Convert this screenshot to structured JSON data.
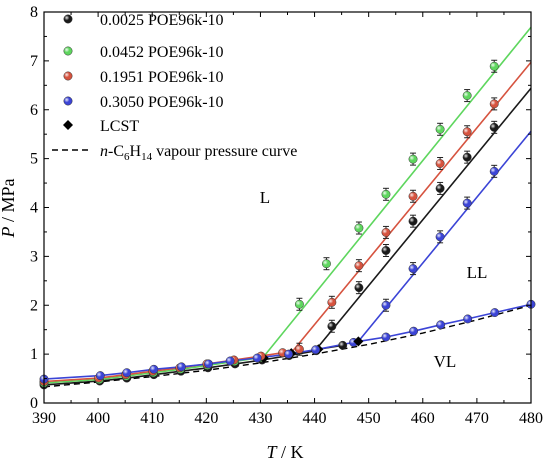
{
  "chart_data": {
    "type": "scatter",
    "xlabel": {
      "var": "T",
      "unit": " / K"
    },
    "ylabel": {
      "var": "P",
      "unit": " / MPa"
    },
    "xlim": [
      390,
      480
    ],
    "ylim": [
      0,
      8
    ],
    "xticks": [
      "390",
      "400",
      "410",
      "420",
      "430",
      "440",
      "450",
      "460",
      "470",
      "480"
    ],
    "yticks": [
      "0",
      "1",
      "2",
      "3",
      "4",
      "5",
      "6",
      "7",
      "8"
    ],
    "grid": false,
    "legend_position": "top-left",
    "region_labels": {
      "L": "L",
      "LL": "LL",
      "VL": "VL"
    },
    "series": [
      {
        "name": "0.0025 POE96k-10",
        "color": "#1a1a1a",
        "vl_points": [
          [
            390,
            0.37
          ],
          [
            400.3,
            0.45
          ],
          [
            405.3,
            0.51
          ],
          [
            410.3,
            0.58
          ],
          [
            415.3,
            0.65
          ],
          [
            420.3,
            0.72
          ],
          [
            425.3,
            0.8
          ],
          [
            430.3,
            0.88
          ],
          [
            435.3,
            0.97
          ],
          [
            440.3,
            1.07
          ],
          [
            445.2,
            1.18
          ]
        ],
        "ll_points": [
          [
            443.2,
            1.57
          ],
          [
            448.2,
            2.36
          ],
          [
            453.2,
            3.12
          ],
          [
            458.2,
            3.72
          ],
          [
            463.2,
            4.39
          ],
          [
            468.2,
            5.03
          ],
          [
            473.2,
            5.64
          ]
        ],
        "ll_fit": [
          [
            440.7,
            1.15
          ],
          [
            480,
            6.44
          ]
        ],
        "lcst": [
          440.7,
          1.1
        ]
      },
      {
        "name": "0.0452 POE96k-10",
        "color": "#5ed65e",
        "vl_points": [
          [
            390,
            0.41
          ],
          [
            400.2,
            0.48
          ],
          [
            405.2,
            0.55
          ],
          [
            410.2,
            0.62
          ],
          [
            415.2,
            0.69
          ],
          [
            420.2,
            0.77
          ],
          [
            425.2,
            0.85
          ],
          [
            430.2,
            0.93
          ]
        ],
        "ll_points": [
          [
            437.2,
            2.02
          ],
          [
            442.2,
            2.85
          ],
          [
            448.2,
            3.58
          ],
          [
            453.2,
            4.27
          ],
          [
            458.2,
            4.99
          ],
          [
            463.2,
            5.6
          ],
          [
            468.2,
            6.29
          ],
          [
            473.2,
            6.89
          ]
        ],
        "ll_fit": [
          [
            430.6,
            0.95
          ],
          [
            480,
            7.69
          ]
        ],
        "lcst": [
          430.6,
          0.92
        ]
      },
      {
        "name": "0.1951 POE96k-10",
        "color": "#d6533f",
        "vl_points": [
          [
            390,
            0.44
          ],
          [
            400.1,
            0.51
          ],
          [
            405.1,
            0.58
          ],
          [
            410.1,
            0.65
          ],
          [
            415.1,
            0.72
          ],
          [
            420.1,
            0.8
          ],
          [
            425.1,
            0.88
          ],
          [
            430.1,
            0.96
          ],
          [
            434.1,
            1.03
          ]
        ],
        "ll_points": [
          [
            437.2,
            1.1
          ],
          [
            443.2,
            2.06
          ],
          [
            448.2,
            2.81
          ],
          [
            453.2,
            3.49
          ],
          [
            458.2,
            4.23
          ],
          [
            463.2,
            4.9
          ],
          [
            468.2,
            5.55
          ],
          [
            473.2,
            6.12
          ]
        ],
        "ll_fit": [
          [
            435.7,
            1.03
          ],
          [
            480,
            6.97
          ]
        ],
        "lcst": [
          435.7,
          1.02
        ]
      },
      {
        "name": "0.3050 POE96k-10",
        "color": "#3b44d6",
        "vl_points": [
          [
            390,
            0.49
          ],
          [
            400.4,
            0.56
          ],
          [
            405.3,
            0.62
          ],
          [
            410.3,
            0.69
          ],
          [
            415.4,
            0.74
          ],
          [
            420.4,
            0.8
          ],
          [
            424.4,
            0.86
          ],
          [
            429.4,
            0.92
          ],
          [
            435.2,
            1.0
          ],
          [
            440.2,
            1.09
          ],
          [
            447.2,
            1.24
          ],
          [
            453.2,
            1.35
          ],
          [
            458.3,
            1.47
          ],
          [
            463.3,
            1.6
          ],
          [
            468.3,
            1.72
          ],
          [
            473.3,
            1.85
          ],
          [
            480,
            2.02
          ]
        ],
        "ll_points": [
          [
            453.2,
            2.0
          ],
          [
            458.2,
            2.75
          ],
          [
            463.2,
            3.4
          ],
          [
            468.2,
            4.09
          ],
          [
            473.2,
            4.74
          ]
        ],
        "ll_fit": [
          [
            448.1,
            1.26
          ],
          [
            480,
            5.56
          ]
        ],
        "lcst": [
          448.1,
          1.26
        ]
      }
    ],
    "lcst_label": "LCST",
    "vapour_curve": {
      "name_prefix": "n",
      "name_formula": "-C",
      "name_sub1": "6",
      "name_h": "H",
      "name_sub2": "14",
      "name_suffix": " vapour pressure curve",
      "points": [
        [
          390,
          0.33
        ],
        [
          400,
          0.43
        ],
        [
          410,
          0.54
        ],
        [
          420,
          0.67
        ],
        [
          430,
          0.82
        ],
        [
          440,
          1.0
        ],
        [
          450,
          1.2
        ],
        [
          460,
          1.43
        ],
        [
          470,
          1.7
        ],
        [
          480,
          2.0
        ]
      ]
    }
  }
}
